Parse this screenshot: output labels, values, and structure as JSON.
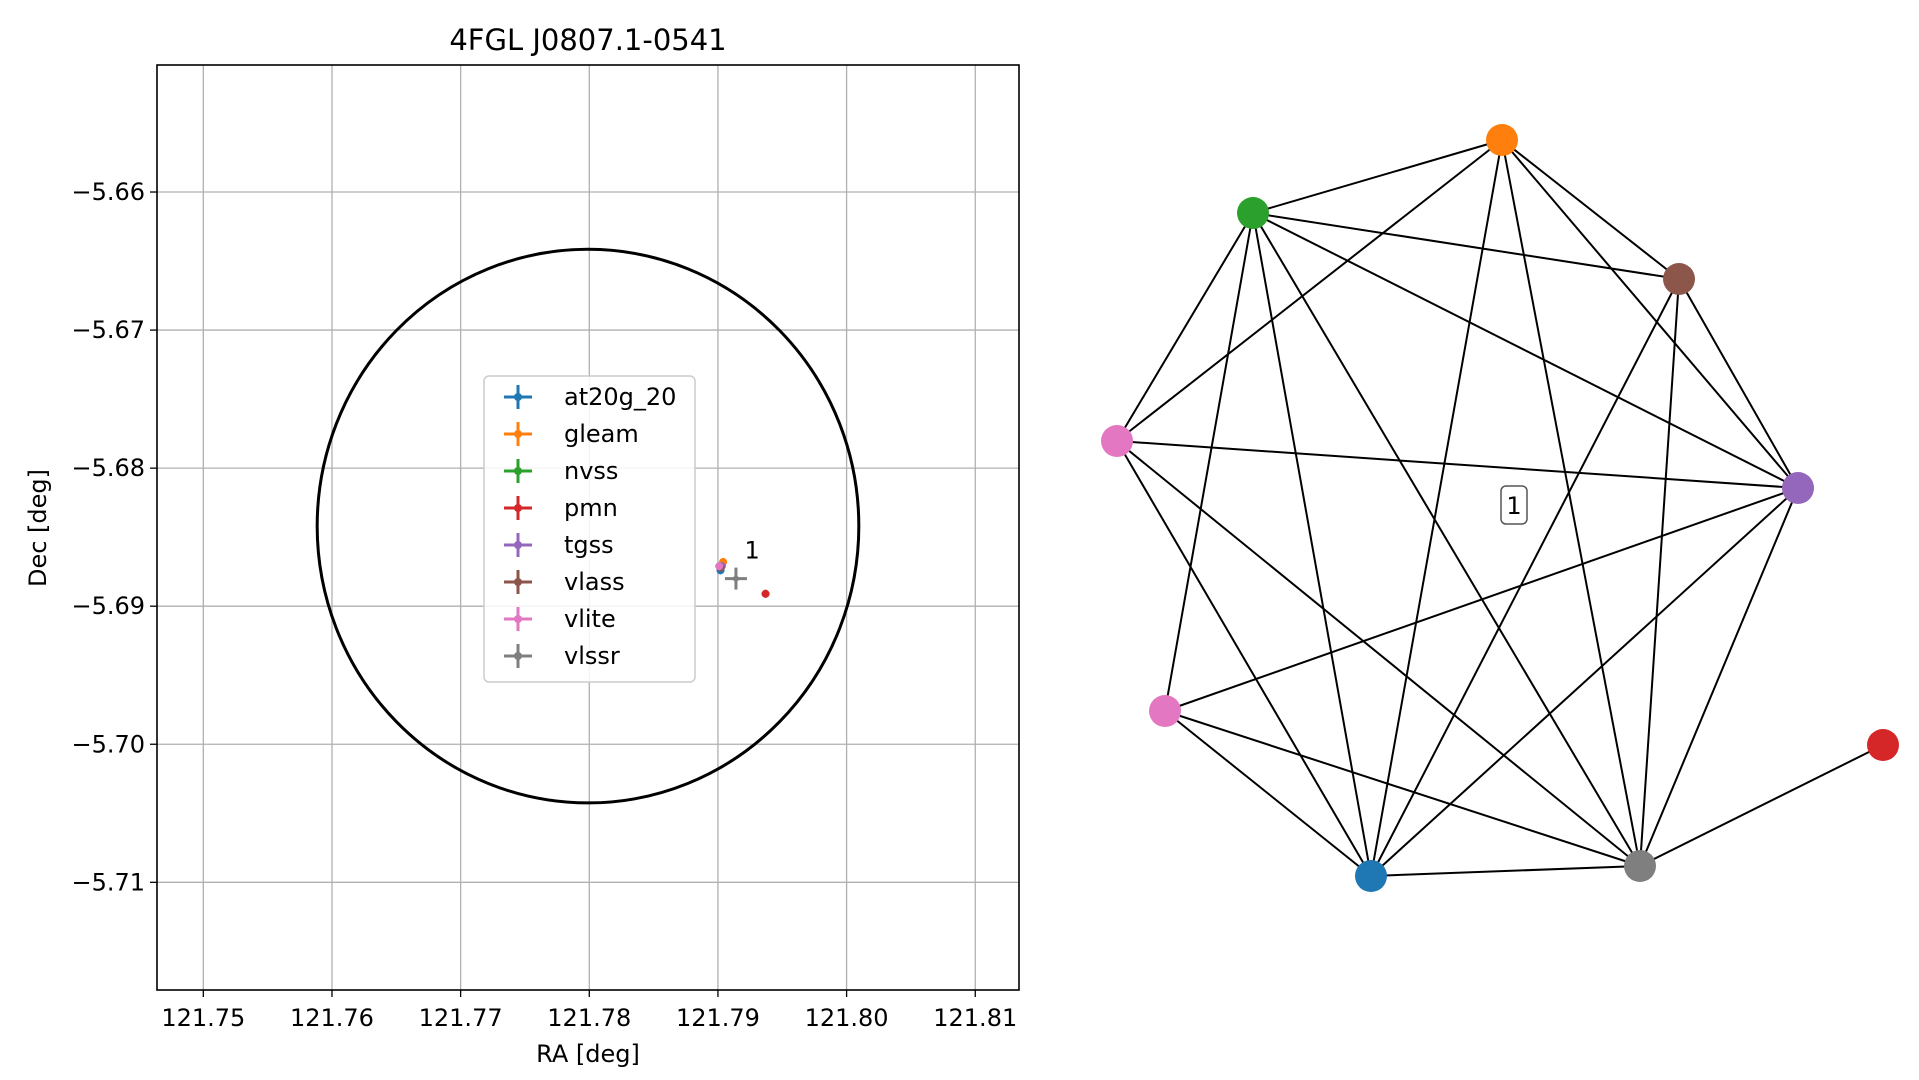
{
  "chart_data": [
    {
      "type": "scatter",
      "title": "4FGL J0807.1-0541",
      "xlabel": "RA [deg]",
      "ylabel": "Dec [deg]",
      "xlim": [
        121.7464,
        121.8134
      ],
      "ylim": [
        -5.7178,
        -5.6508
      ],
      "xticks": [
        121.75,
        121.76,
        121.77,
        121.78,
        121.79,
        121.8,
        121.81
      ],
      "xtick_labels": [
        "121.75",
        "121.76",
        "121.77",
        "121.78",
        "121.79",
        "121.80",
        "121.81"
      ],
      "yticks": [
        -5.66,
        -5.67,
        -5.68,
        -5.69,
        -5.7,
        -5.71
      ],
      "ytick_labels": [
        "−5.66",
        "−5.67",
        "−5.68",
        "−5.69",
        "−5.70",
        "−5.71"
      ],
      "grid": true,
      "legend_position": "center",
      "ellipse": {
        "center": [
          121.7799,
          -5.6842
        ],
        "half_width_ra": 0.02105,
        "half_height_dec": 0.02005,
        "color": "#000000"
      },
      "series": [
        {
          "name": "at20g_20",
          "color": "#1f77b4",
          "x": 121.7902,
          "y": -5.6874
        },
        {
          "name": "gleam",
          "color": "#ff7f0e",
          "x": 121.7904,
          "y": -5.6868
        },
        {
          "name": "nvss",
          "color": "#2ca02c",
          "x": 121.7902,
          "y": -5.6871
        },
        {
          "name": "pmn",
          "color": "#d62728",
          "x": 121.7937,
          "y": -5.6891
        },
        {
          "name": "tgss",
          "color": "#9467bd",
          "x": 121.7903,
          "y": -5.6871
        },
        {
          "name": "vlass",
          "color": "#8c564b",
          "x": 121.7902,
          "y": -5.6872
        },
        {
          "name": "vlite",
          "color": "#e377c2",
          "x": 121.7901,
          "y": -5.6871
        },
        {
          "name": "vlssr",
          "color": "#7f7f7f",
          "x": 121.7914,
          "y": -5.688
        }
      ],
      "annotations": [
        {
          "text": "1",
          "x": 121.7916,
          "y": -5.6864
        }
      ]
    },
    {
      "type": "network",
      "nodes": [
        {
          "id": "gleam",
          "color": "#ff7f0e"
        },
        {
          "id": "nvss",
          "color": "#2ca02c"
        },
        {
          "id": "vlass",
          "color": "#8c564b"
        },
        {
          "id": "vlite_a",
          "color": "#e377c2"
        },
        {
          "id": "tgss",
          "color": "#9467bd"
        },
        {
          "id": "vlite_b",
          "color": "#e377c2"
        },
        {
          "id": "at20g_20",
          "color": "#1f77b4"
        },
        {
          "id": "vlssr",
          "color": "#7f7f7f"
        },
        {
          "id": "pmn",
          "color": "#d62728"
        }
      ],
      "edges": [
        [
          "nvss",
          "gleam"
        ],
        [
          "nvss",
          "vlass"
        ],
        [
          "nvss",
          "tgss"
        ],
        [
          "nvss",
          "vlite_a"
        ],
        [
          "nvss",
          "vlite_b"
        ],
        [
          "nvss",
          "at20g_20"
        ],
        [
          "nvss",
          "vlssr"
        ],
        [
          "gleam",
          "vlass"
        ],
        [
          "gleam",
          "tgss"
        ],
        [
          "gleam",
          "vlite_a"
        ],
        [
          "gleam",
          "at20g_20"
        ],
        [
          "gleam",
          "vlssr"
        ],
        [
          "vlass",
          "tgss"
        ],
        [
          "vlass",
          "at20g_20"
        ],
        [
          "vlass",
          "vlssr"
        ],
        [
          "vlite_a",
          "tgss"
        ],
        [
          "vlite_a",
          "at20g_20"
        ],
        [
          "vlite_a",
          "vlssr"
        ],
        [
          "tgss",
          "vlite_b"
        ],
        [
          "tgss",
          "at20g_20"
        ],
        [
          "tgss",
          "vlssr"
        ],
        [
          "vlite_b",
          "at20g_20"
        ],
        [
          "vlite_b",
          "vlssr"
        ],
        [
          "at20g_20",
          "vlssr"
        ],
        [
          "vlssr",
          "pmn"
        ]
      ],
      "label": "1"
    }
  ]
}
